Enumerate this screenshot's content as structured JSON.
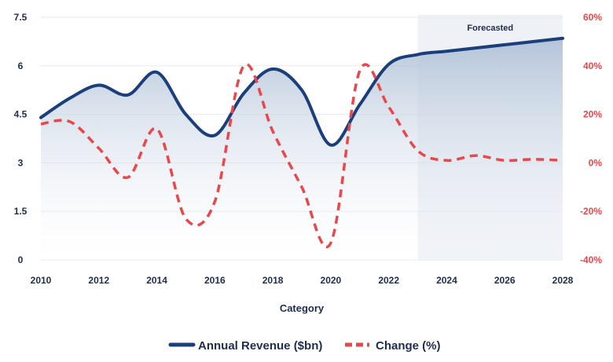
{
  "chart_data": {
    "type": "area",
    "xlabel": "Category",
    "x": [
      2010,
      2011,
      2012,
      2013,
      2014,
      2015,
      2016,
      2017,
      2018,
      2019,
      2020,
      2021,
      2022,
      2023,
      2024,
      2025,
      2026,
      2027,
      2028
    ],
    "x_ticks": [
      "2010",
      "2012",
      "2014",
      "2016",
      "2018",
      "2020",
      "2022",
      "2024",
      "2026",
      "2028"
    ],
    "y_left": {
      "ticks": [
        "0",
        "1.5",
        "3",
        "4.5",
        "6",
        "7.5"
      ],
      "range": [
        0,
        7.5
      ]
    },
    "y_right": {
      "ticks": [
        "-40%",
        "-20%",
        "0%",
        "20%",
        "40%",
        "60%"
      ],
      "range": [
        -40,
        60
      ],
      "unit": "%"
    },
    "grid": "horizontal",
    "legend_position": "bottom",
    "series": [
      {
        "name": "Annual Revenue ($bn)",
        "axis": "left",
        "style": "solid line with gradient area fill",
        "color": "#1b3f7a",
        "values": [
          4.4,
          5.0,
          5.4,
          5.1,
          5.8,
          4.5,
          3.85,
          5.15,
          5.9,
          5.25,
          3.55,
          4.8,
          6.05,
          6.35,
          6.45,
          6.55,
          6.65,
          6.75,
          6.85
        ]
      },
      {
        "name": "Change (%)",
        "axis": "right",
        "style": "dashed line",
        "color": "#e8474c",
        "values": [
          16,
          17,
          6,
          -6,
          14,
          -23,
          -16,
          40,
          13,
          -10,
          -33,
          38,
          23,
          5,
          1,
          3,
          1,
          1.5,
          1
        ]
      }
    ],
    "annotations": [
      {
        "text": "Forecasted",
        "x_start": 2023,
        "x_end": 2028,
        "shade_color": "#eef1f6"
      }
    ]
  }
}
